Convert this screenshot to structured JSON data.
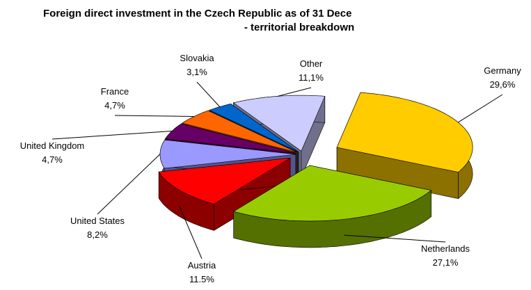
{
  "chart_data": {
    "type": "pie",
    "title": "Foreign direct investment in the Czech Republic as of 31 Dece",
    "subtitle": "- territorial breakdown",
    "categories": [
      "Germany",
      "Netherlands",
      "Austria",
      "United States",
      "United Kingdom",
      "France",
      "Slovakia",
      "Other"
    ],
    "values": [
      29.6,
      27.1,
      11.5,
      8.2,
      4.7,
      4.7,
      3.1,
      11.1
    ],
    "value_labels": [
      "29,6%",
      "27,1%",
      "11.5%",
      "8,2%",
      "4,7%",
      "4,7%",
      "3,1%",
      "11,1%"
    ],
    "colors": [
      "#ffcc00",
      "#99cc00",
      "#ff0000",
      "#9999ff",
      "#660066",
      "#ff6600",
      "#0066cc",
      "#ccccff"
    ]
  }
}
